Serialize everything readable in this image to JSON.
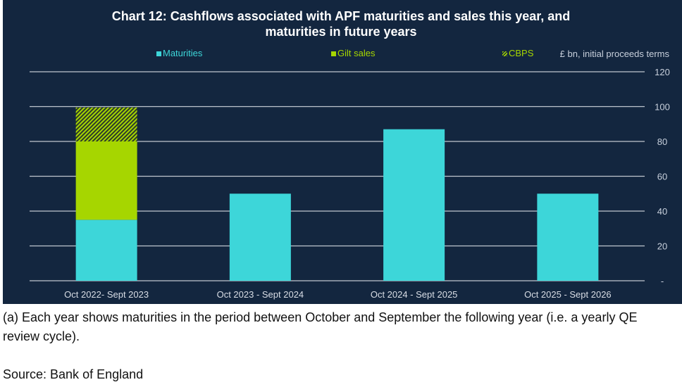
{
  "chart_data": {
    "type": "bar",
    "stacked": true,
    "title": "Chart 12: Cashflows associated with APF maturities and sales this year, and maturities in future years",
    "title_lines": [
      "Chart 12: Cashflows associated with APF maturities and sales this year, and",
      "maturities in future years"
    ],
    "ylabel": "£ bn, initial proceeds terms",
    "ylim": [
      0,
      120
    ],
    "yticks": [
      0,
      20,
      40,
      60,
      80,
      100,
      120
    ],
    "ytick_labels": [
      "-",
      "20",
      "40",
      "60",
      "80",
      "100",
      "120"
    ],
    "grid": true,
    "legend_position": "top",
    "categories": [
      "Oct 2022- Sept 2023",
      "Oct 2023 - Sept 2024",
      "Oct 2024 - Sept 2025",
      "Oct 2025 - Sept 2026"
    ],
    "series": [
      {
        "name": "Maturities",
        "color": "#3dd6d9",
        "pattern": "solid",
        "values": [
          35,
          50,
          87,
          50
        ]
      },
      {
        "name": "Gilt sales",
        "color": "#a6d600",
        "pattern": "solid",
        "values": [
          45,
          0,
          0,
          0
        ]
      },
      {
        "name": "CBPS",
        "color": "#a6d600",
        "pattern": "hatched",
        "values": [
          19.5,
          0,
          0,
          0
        ]
      }
    ]
  },
  "footnote": "(a) Each year shows maturities in the period between October and September the following year (i.e. a yearly QE review cycle).",
  "source": "Source: Bank of England"
}
